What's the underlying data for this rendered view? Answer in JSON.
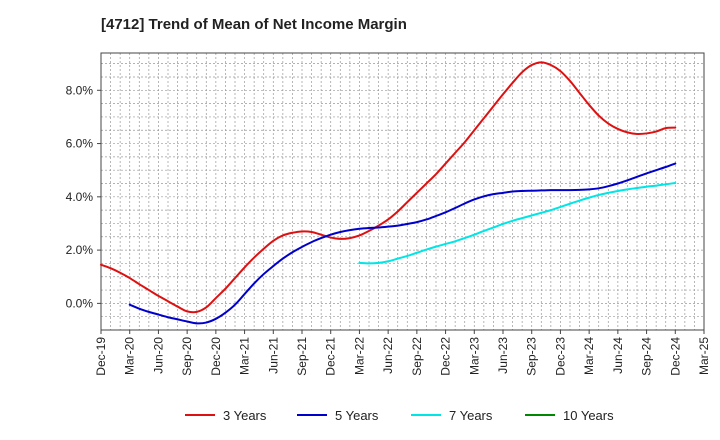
{
  "chart_data": {
    "type": "line",
    "title": "[4712]  Trend of Mean of Net Income Margin",
    "xlabel": "",
    "ylabel": "",
    "x_ticks": [
      "Dec-19",
      "Mar-20",
      "Jun-20",
      "Sep-20",
      "Dec-20",
      "Mar-21",
      "Jun-21",
      "Sep-21",
      "Dec-21",
      "Mar-22",
      "Jun-22",
      "Sep-22",
      "Dec-22",
      "Mar-23",
      "Jun-23",
      "Sep-23",
      "Dec-23",
      "Mar-24",
      "Jun-24",
      "Sep-24",
      "Dec-24",
      "Mar-25"
    ],
    "y_ticks": [
      "0.0%",
      "2.0%",
      "4.0%",
      "6.0%",
      "8.0%"
    ],
    "y_tick_values": [
      0,
      2,
      4,
      6,
      8
    ],
    "ylim": [
      -1.0,
      9.4
    ],
    "grid": true,
    "legend_position": "bottom",
    "series": [
      {
        "name": "3 Years",
        "color": "#dd1111",
        "x": [
          "Dec-19",
          "Jan-20",
          "Feb-20",
          "Mar-20",
          "Apr-20",
          "May-20",
          "Jun-20",
          "Jul-20",
          "Aug-20",
          "Sep-20",
          "Oct-20",
          "Nov-20",
          "Dec-20",
          "Jan-21",
          "Feb-21",
          "Mar-21",
          "Apr-21",
          "May-21",
          "Jun-21",
          "Jul-21",
          "Aug-21",
          "Sep-21",
          "Oct-21",
          "Nov-21",
          "Dec-21",
          "Jan-22",
          "Feb-22",
          "Mar-22",
          "Apr-22",
          "May-22",
          "Jun-22",
          "Jul-22",
          "Aug-22",
          "Sep-22",
          "Oct-22",
          "Nov-22",
          "Dec-22",
          "Jan-23",
          "Feb-23",
          "Mar-23",
          "Apr-23",
          "May-23",
          "Jun-23",
          "Jul-23",
          "Aug-23",
          "Sep-23",
          "Oct-23",
          "Nov-23",
          "Dec-23",
          "Jan-24",
          "Feb-24",
          "Mar-24",
          "Apr-24",
          "May-24",
          "Jun-24",
          "Jul-24",
          "Aug-24",
          "Sep-24",
          "Oct-24",
          "Nov-24",
          "Dec-24"
        ],
        "values": [
          1.45,
          1.32,
          1.15,
          0.95,
          0.72,
          0.5,
          0.28,
          0.08,
          -0.12,
          -0.3,
          -0.32,
          -0.15,
          0.2,
          0.55,
          0.95,
          1.35,
          1.72,
          2.05,
          2.35,
          2.55,
          2.65,
          2.7,
          2.68,
          2.58,
          2.47,
          2.42,
          2.45,
          2.55,
          2.72,
          2.92,
          3.15,
          3.45,
          3.8,
          4.15,
          4.5,
          4.85,
          5.25,
          5.65,
          6.05,
          6.5,
          6.95,
          7.4,
          7.85,
          8.28,
          8.68,
          8.95,
          9.05,
          8.95,
          8.72,
          8.35,
          7.9,
          7.45,
          7.05,
          6.75,
          6.55,
          6.42,
          6.36,
          6.38,
          6.45,
          6.58,
          6.6
        ]
      },
      {
        "name": "5 Years",
        "color": "#0000cc",
        "x": [
          "Dec-19",
          "Jan-20",
          "Feb-20",
          "Mar-20",
          "Apr-20",
          "May-20",
          "Jun-20",
          "Jul-20",
          "Aug-20",
          "Sep-20",
          "Oct-20",
          "Nov-20",
          "Dec-20",
          "Jan-21",
          "Feb-21",
          "Mar-21",
          "Apr-21",
          "May-21",
          "Jun-21",
          "Jul-21",
          "Aug-21",
          "Sep-21",
          "Oct-21",
          "Nov-21",
          "Dec-21",
          "Jan-22",
          "Feb-22",
          "Mar-22",
          "Apr-22",
          "May-22",
          "Jun-22",
          "Jul-22",
          "Aug-22",
          "Sep-22",
          "Oct-22",
          "Nov-22",
          "Dec-22",
          "Jan-23",
          "Feb-23",
          "Mar-23",
          "Apr-23",
          "May-23",
          "Jun-23",
          "Jul-23",
          "Aug-23",
          "Sep-23",
          "Oct-23",
          "Nov-23",
          "Dec-23",
          "Jan-24",
          "Feb-24",
          "Mar-24",
          "Apr-24",
          "May-24",
          "Jun-24",
          "Jul-24",
          "Aug-24",
          "Sep-24",
          "Oct-24",
          "Nov-24",
          "Dec-24"
        ],
        "values": [
          null,
          null,
          null,
          -0.05,
          -0.2,
          -0.32,
          -0.42,
          -0.52,
          -0.6,
          -0.68,
          -0.75,
          -0.72,
          -0.58,
          -0.35,
          -0.05,
          0.35,
          0.75,
          1.1,
          1.4,
          1.68,
          1.92,
          2.12,
          2.3,
          2.45,
          2.58,
          2.68,
          2.75,
          2.8,
          2.83,
          2.85,
          2.88,
          2.92,
          2.98,
          3.05,
          3.15,
          3.28,
          3.42,
          3.58,
          3.75,
          3.9,
          4.02,
          4.1,
          4.15,
          4.2,
          4.22,
          4.23,
          4.24,
          4.25,
          4.25,
          4.25,
          4.26,
          4.28,
          4.32,
          4.4,
          4.5,
          4.62,
          4.75,
          4.88,
          5.0,
          5.12,
          5.25
        ]
      },
      {
        "name": "7 Years",
        "color": "#00e5e5",
        "x": [
          "Mar-22",
          "Apr-22",
          "May-22",
          "Jun-22",
          "Jul-22",
          "Aug-22",
          "Sep-22",
          "Oct-22",
          "Nov-22",
          "Dec-22",
          "Jan-23",
          "Feb-23",
          "Mar-23",
          "Apr-23",
          "May-23",
          "Jun-23",
          "Jul-23",
          "Aug-23",
          "Sep-23",
          "Oct-23",
          "Nov-23",
          "Dec-23",
          "Jan-24",
          "Feb-24",
          "Mar-24",
          "Apr-24",
          "May-24",
          "Jun-24",
          "Jul-24",
          "Aug-24",
          "Sep-24",
          "Oct-24",
          "Nov-24",
          "Dec-24"
        ],
        "values": [
          1.52,
          1.5,
          1.52,
          1.58,
          1.68,
          1.78,
          1.9,
          2.02,
          2.13,
          2.23,
          2.33,
          2.45,
          2.58,
          2.72,
          2.85,
          2.98,
          3.1,
          3.2,
          3.3,
          3.4,
          3.5,
          3.62,
          3.74,
          3.86,
          3.97,
          4.07,
          4.15,
          4.22,
          4.28,
          4.33,
          4.38,
          4.42,
          4.47,
          4.52
        ]
      },
      {
        "name": "10 Years",
        "color": "#008800",
        "x": [],
        "values": []
      }
    ]
  }
}
